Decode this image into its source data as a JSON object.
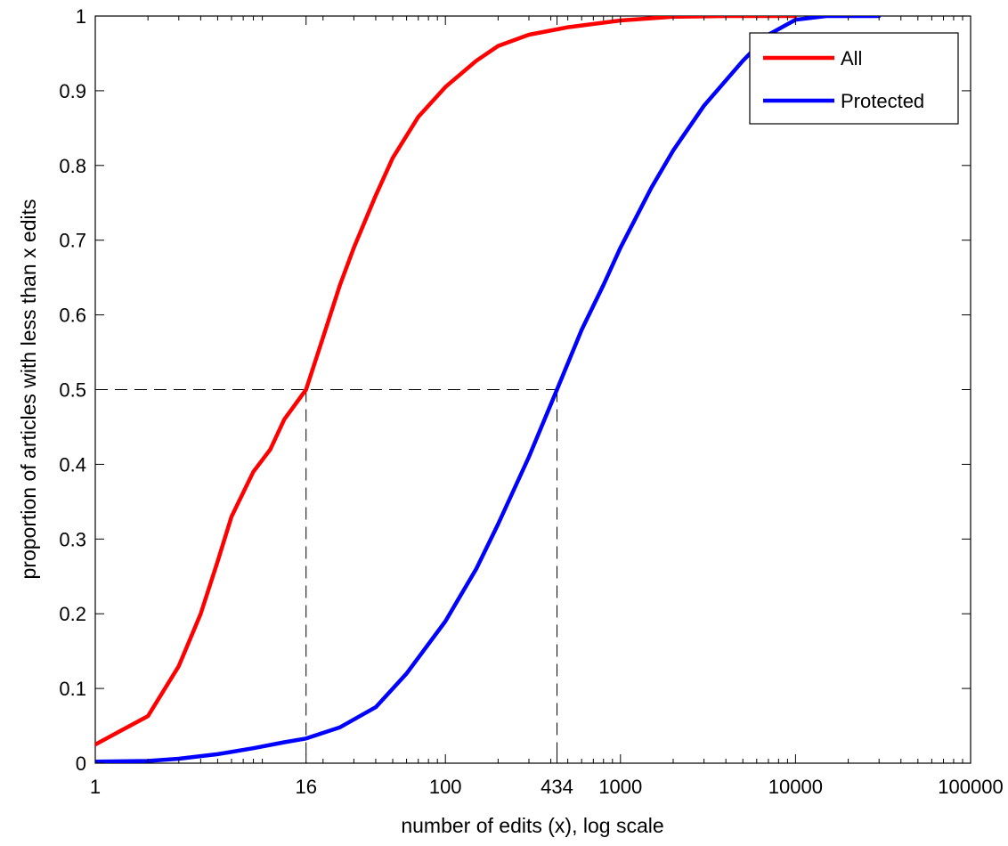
{
  "chart_data": {
    "type": "line",
    "xlabel": "number of edits (x), log scale",
    "ylabel": "proportion of articles with less than x edits",
    "x_scale": "log",
    "xlim": [
      1,
      100000
    ],
    "ylim": [
      0,
      1
    ],
    "grid": false,
    "legend_position": "top-right",
    "xticks": [
      {
        "value": 1,
        "label": "1"
      },
      {
        "value": 16,
        "label": "16"
      },
      {
        "value": 100,
        "label": "100"
      },
      {
        "value": 434,
        "label": "434"
      },
      {
        "value": 1000,
        "label": "1000"
      },
      {
        "value": 10000,
        "label": "10000"
      },
      {
        "value": 100000,
        "label": "100000"
      }
    ],
    "yticks": [
      {
        "value": 0,
        "label": "0"
      },
      {
        "value": 0.1,
        "label": "0.1"
      },
      {
        "value": 0.2,
        "label": "0.2"
      },
      {
        "value": 0.3,
        "label": "0.3"
      },
      {
        "value": 0.4,
        "label": "0.4"
      },
      {
        "value": 0.5,
        "label": "0.5"
      },
      {
        "value": 0.6,
        "label": "0.6"
      },
      {
        "value": 0.7,
        "label": "0.7"
      },
      {
        "value": 0.8,
        "label": "0.8"
      },
      {
        "value": 0.9,
        "label": "0.9"
      },
      {
        "value": 1,
        "label": "1"
      }
    ],
    "series": [
      {
        "name": "All",
        "color": "#ff0000",
        "points": [
          [
            1,
            0.025
          ],
          [
            2,
            0.063
          ],
          [
            3,
            0.13
          ],
          [
            4,
            0.2
          ],
          [
            5,
            0.27
          ],
          [
            6,
            0.33
          ],
          [
            8,
            0.39
          ],
          [
            10,
            0.42
          ],
          [
            12,
            0.46
          ],
          [
            16,
            0.5
          ],
          [
            20,
            0.57
          ],
          [
            25,
            0.64
          ],
          [
            30,
            0.69
          ],
          [
            40,
            0.76
          ],
          [
            50,
            0.81
          ],
          [
            70,
            0.865
          ],
          [
            100,
            0.905
          ],
          [
            150,
            0.94
          ],
          [
            200,
            0.96
          ],
          [
            300,
            0.975
          ],
          [
            500,
            0.985
          ],
          [
            1000,
            0.994
          ],
          [
            2000,
            0.999
          ],
          [
            4000,
            1.0
          ],
          [
            10000,
            1.0
          ]
        ]
      },
      {
        "name": "Protected",
        "color": "#0000ff",
        "points": [
          [
            1,
            0.002
          ],
          [
            2,
            0.003
          ],
          [
            3,
            0.006
          ],
          [
            5,
            0.012
          ],
          [
            8,
            0.02
          ],
          [
            12,
            0.028
          ],
          [
            16,
            0.033
          ],
          [
            25,
            0.048
          ],
          [
            40,
            0.075
          ],
          [
            60,
            0.12
          ],
          [
            100,
            0.19
          ],
          [
            150,
            0.26
          ],
          [
            200,
            0.32
          ],
          [
            300,
            0.41
          ],
          [
            434,
            0.5
          ],
          [
            600,
            0.58
          ],
          [
            800,
            0.64
          ],
          [
            1000,
            0.69
          ],
          [
            1500,
            0.77
          ],
          [
            2000,
            0.82
          ],
          [
            3000,
            0.88
          ],
          [
            5000,
            0.94
          ],
          [
            7000,
            0.975
          ],
          [
            10000,
            0.995
          ],
          [
            15000,
            1.0
          ],
          [
            30000,
            1.0
          ]
        ]
      }
    ],
    "reference_lines": [
      {
        "x": 16,
        "y": 0.5
      },
      {
        "x": 434,
        "y": 0.5
      }
    ]
  }
}
